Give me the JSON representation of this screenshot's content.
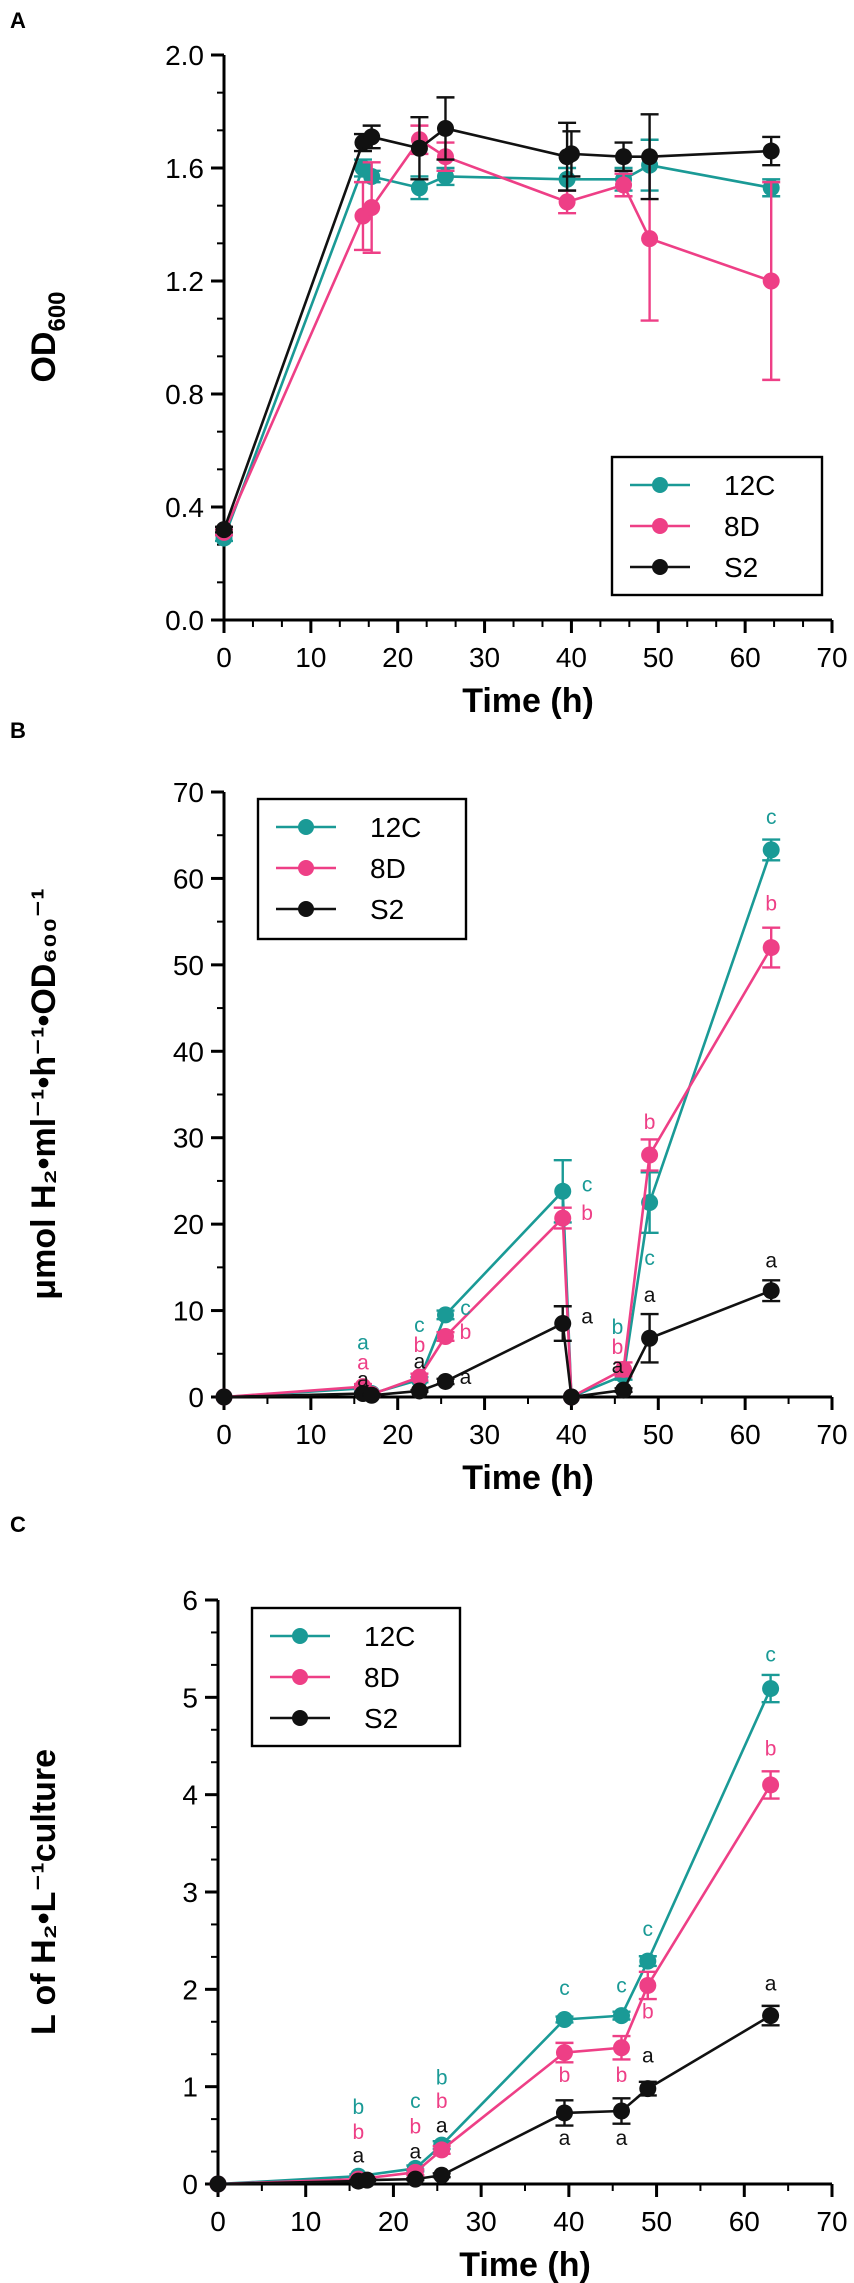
{
  "figure": {
    "panels": [
      {
        "letter": "A"
      },
      {
        "letter": "B"
      },
      {
        "letter": "C"
      }
    ]
  },
  "colors": {
    "12C": "#1a9a96",
    "8D": "#ee3f86",
    "S2": "#111111"
  },
  "chart_data": [
    {
      "panel": "A",
      "type": "line",
      "title": "",
      "xlabel": "Time (h)",
      "ylabel": {
        "main": "OD",
        "sub": "600"
      },
      "xlim": [
        0,
        70
      ],
      "ylim": [
        0,
        2.0
      ],
      "x_ticks": [
        "0",
        "10",
        "20",
        "30",
        "40",
        "50",
        "60",
        "70"
      ],
      "y_ticks": [
        "0.0",
        "0.4",
        "0.8",
        "1.2",
        "1.6",
        "2.0"
      ],
      "legend_position": "bottom-right",
      "series": [
        {
          "name": "12C",
          "color": "#1a9a96",
          "points": [
            {
              "x": 0,
              "y": 0.29,
              "err": 0.01
            },
            {
              "x": 16,
              "y": 1.6,
              "err": 0.03
            },
            {
              "x": 17,
              "y": 1.57,
              "err": 0.02
            },
            {
              "x": 22.5,
              "y": 1.53,
              "err": 0.04
            },
            {
              "x": 25.5,
              "y": 1.57,
              "err": 0.03
            },
            {
              "x": 39.5,
              "y": 1.56,
              "err": 0.04
            },
            {
              "x": 46,
              "y": 1.56,
              "err": 0.04
            },
            {
              "x": 49,
              "y": 1.61,
              "err": 0.09
            },
            {
              "x": 63,
              "y": 1.53,
              "err": 0.03
            }
          ]
        },
        {
          "name": "8D",
          "color": "#ee3f86",
          "points": [
            {
              "x": 0,
              "y": 0.31,
              "err": 0.01
            },
            {
              "x": 16,
              "y": 1.43,
              "err": 0.12
            },
            {
              "x": 17,
              "y": 1.46,
              "err": 0.16
            },
            {
              "x": 22.5,
              "y": 1.7,
              "err": 0.05
            },
            {
              "x": 25.5,
              "y": 1.64,
              "err": 0.05
            },
            {
              "x": 39.5,
              "y": 1.48,
              "err": 0.04
            },
            {
              "x": 46,
              "y": 1.54,
              "err": 0.04
            },
            {
              "x": 49,
              "y": 1.35,
              "err": 0.29
            },
            {
              "x": 63,
              "y": 1.2,
              "err": 0.35
            }
          ]
        },
        {
          "name": "S2",
          "color": "#111111",
          "points": [
            {
              "x": 0,
              "y": 0.32,
              "err": 0.01
            },
            {
              "x": 16,
              "y": 1.69,
              "err": 0.03
            },
            {
              "x": 17,
              "y": 1.71,
              "err": 0.04
            },
            {
              "x": 22.5,
              "y": 1.67,
              "err": 0.11
            },
            {
              "x": 25.5,
              "y": 1.74,
              "err": 0.11
            },
            {
              "x": 39.5,
              "y": 1.64,
              "err": 0.12
            },
            {
              "x": 40,
              "y": 1.65,
              "err": 0.08
            },
            {
              "x": 46,
              "y": 1.64,
              "err": 0.05
            },
            {
              "x": 49,
              "y": 1.64,
              "err": 0.15
            },
            {
              "x": 63,
              "y": 1.66,
              "err": 0.05
            }
          ]
        }
      ]
    },
    {
      "panel": "B",
      "type": "line",
      "title": "",
      "xlabel": "Time (h)",
      "ylabel": {
        "text": "μmol H₂•ml⁻¹•h⁻¹•OD₆₀₀⁻¹"
      },
      "xlim": [
        0,
        70
      ],
      "ylim": [
        0,
        70
      ],
      "x_ticks": [
        "0",
        "10",
        "20",
        "30",
        "40",
        "50",
        "60",
        "70"
      ],
      "y_ticks": [
        "0",
        "10",
        "20",
        "30",
        "40",
        "50",
        "60",
        "70"
      ],
      "legend_position": "top-left",
      "series": [
        {
          "name": "12C",
          "color": "#1a9a96",
          "points": [
            {
              "x": 0,
              "y": 0,
              "err": 0
            },
            {
              "x": 16,
              "y": 1.0,
              "err": 0.3
            },
            {
              "x": 17,
              "y": 0.4,
              "err": 0.2
            },
            {
              "x": 22.5,
              "y": 2.0,
              "err": 0.3
            },
            {
              "x": 25.5,
              "y": 9.5,
              "err": 0.5
            },
            {
              "x": 39,
              "y": 23.8,
              "err": 3.6
            },
            {
              "x": 40,
              "y": 0,
              "err": 0
            },
            {
              "x": 46,
              "y": 2.5,
              "err": 0.5
            },
            {
              "x": 49,
              "y": 22.5,
              "err": 3.5
            },
            {
              "x": 63,
              "y": 63.3,
              "err": 1.2
            }
          ]
        },
        {
          "name": "8D",
          "color": "#ee3f86",
          "points": [
            {
              "x": 0,
              "y": 0,
              "err": 0
            },
            {
              "x": 16,
              "y": 1.2,
              "err": 0.3
            },
            {
              "x": 17,
              "y": 0.3,
              "err": 0.2
            },
            {
              "x": 22.5,
              "y": 2.3,
              "err": 0.4
            },
            {
              "x": 25.5,
              "y": 7.0,
              "err": 0.5
            },
            {
              "x": 39,
              "y": 20.7,
              "err": 1.2
            },
            {
              "x": 40,
              "y": 0,
              "err": 0
            },
            {
              "x": 46,
              "y": 3.2,
              "err": 0.8
            },
            {
              "x": 49,
              "y": 28.0,
              "err": 1.8
            },
            {
              "x": 63,
              "y": 52.0,
              "err": 2.3
            }
          ]
        },
        {
          "name": "S2",
          "color": "#111111",
          "points": [
            {
              "x": 0,
              "y": 0,
              "err": 0
            },
            {
              "x": 16,
              "y": 0.4,
              "err": 0.1
            },
            {
              "x": 17,
              "y": 0.2,
              "err": 0.1
            },
            {
              "x": 22.5,
              "y": 0.7,
              "err": 0.1
            },
            {
              "x": 25.5,
              "y": 1.8,
              "err": 0.3
            },
            {
              "x": 39,
              "y": 8.5,
              "err": 2.0
            },
            {
              "x": 40,
              "y": 0,
              "err": 0
            },
            {
              "x": 46,
              "y": 0.8,
              "err": 0.2
            },
            {
              "x": 49,
              "y": 6.8,
              "err": 2.8
            },
            {
              "x": 63,
              "y": 12.3,
              "err": 1.2
            }
          ]
        }
      ],
      "annotations": [
        {
          "text": "a",
          "series": "12C",
          "x": 16,
          "y": 5.5
        },
        {
          "text": "a",
          "series": "8D",
          "x": 16,
          "y": 3.2
        },
        {
          "text": "a",
          "series": "S2",
          "x": 16,
          "y": 1.2
        },
        {
          "text": "a",
          "series": "S2",
          "x": 22.5,
          "y": 3.3
        },
        {
          "text": "c",
          "series": "12C",
          "x": 22.5,
          "y": 7.5
        },
        {
          "text": "b",
          "series": "8D",
          "x": 22.5,
          "y": 5.2
        },
        {
          "text": "c",
          "series": "12C",
          "x": 27.8,
          "y": 9.5
        },
        {
          "text": "b",
          "series": "8D",
          "x": 27.8,
          "y": 6.7
        },
        {
          "text": "a",
          "series": "S2",
          "x": 27.8,
          "y": 1.5
        },
        {
          "text": "c",
          "series": "12C",
          "x": 41.8,
          "y": 23.8
        },
        {
          "text": "b",
          "series": "8D",
          "x": 41.8,
          "y": 20.5
        },
        {
          "text": "a",
          "series": "S2",
          "x": 41.8,
          "y": 8.5
        },
        {
          "text": "b",
          "series": "12C",
          "x": 45.3,
          "y": 7.3
        },
        {
          "text": "b",
          "series": "8D",
          "x": 45.3,
          "y": 5.0
        },
        {
          "text": "a",
          "series": "S2",
          "x": 45.3,
          "y": 2.8
        },
        {
          "text": "b",
          "series": "8D",
          "x": 49,
          "y": 31.0
        },
        {
          "text": "c",
          "series": "12C",
          "x": 49,
          "y": 15.3
        },
        {
          "text": "a",
          "series": "S2",
          "x": 49,
          "y": 11.0
        },
        {
          "text": "c",
          "series": "12C",
          "x": 63,
          "y": 66.3
        },
        {
          "text": "b",
          "series": "8D",
          "x": 63,
          "y": 56.3
        },
        {
          "text": "a",
          "series": "S2",
          "x": 63,
          "y": 15.0
        }
      ]
    },
    {
      "panel": "C",
      "type": "line",
      "title": "",
      "xlabel": "Time (h)",
      "ylabel": {
        "text": "L of H₂•L⁻¹culture"
      },
      "xlim": [
        0,
        70
      ],
      "ylim": [
        0,
        6
      ],
      "x_ticks": [
        "0",
        "10",
        "20",
        "30",
        "40",
        "50",
        "60",
        "70"
      ],
      "y_ticks": [
        "0",
        "1",
        "2",
        "3",
        "4",
        "5",
        "6"
      ],
      "legend_position": "top-left",
      "series": [
        {
          "name": "12C",
          "color": "#1a9a96",
          "points": [
            {
              "x": 0,
              "y": 0,
              "err": 0
            },
            {
              "x": 16,
              "y": 0.08,
              "err": 0.02
            },
            {
              "x": 22.5,
              "y": 0.16,
              "err": 0.03
            },
            {
              "x": 25.5,
              "y": 0.4,
              "err": 0.04
            },
            {
              "x": 39.5,
              "y": 1.69,
              "err": 0.03
            },
            {
              "x": 46,
              "y": 1.73,
              "err": 0.04
            },
            {
              "x": 49,
              "y": 2.29,
              "err": 0.05
            },
            {
              "x": 63,
              "y": 5.09,
              "err": 0.14
            }
          ]
        },
        {
          "name": "8D",
          "color": "#ee3f86",
          "points": [
            {
              "x": 0,
              "y": 0,
              "err": 0
            },
            {
              "x": 16,
              "y": 0.05,
              "err": 0.02
            },
            {
              "x": 22.5,
              "y": 0.12,
              "err": 0.03
            },
            {
              "x": 25.5,
              "y": 0.35,
              "err": 0.04
            },
            {
              "x": 39.5,
              "y": 1.35,
              "err": 0.1
            },
            {
              "x": 46,
              "y": 1.4,
              "err": 0.12
            },
            {
              "x": 49,
              "y": 2.04,
              "err": 0.14
            },
            {
              "x": 63,
              "y": 4.1,
              "err": 0.14
            }
          ]
        },
        {
          "name": "S2",
          "color": "#111111",
          "points": [
            {
              "x": 0,
              "y": 0,
              "err": 0
            },
            {
              "x": 16,
              "y": 0.03,
              "err": 0.01
            },
            {
              "x": 17,
              "y": 0.04,
              "err": 0.01
            },
            {
              "x": 22.5,
              "y": 0.05,
              "err": 0.01
            },
            {
              "x": 25.5,
              "y": 0.09,
              "err": 0.02
            },
            {
              "x": 39.5,
              "y": 0.73,
              "err": 0.13
            },
            {
              "x": 46,
              "y": 0.75,
              "err": 0.13
            },
            {
              "x": 49,
              "y": 0.98,
              "err": 0.07
            },
            {
              "x": 63,
              "y": 1.73,
              "err": 0.1
            }
          ]
        }
      ],
      "annotations": [
        {
          "text": "b",
          "series": "12C",
          "x": 16,
          "y": 0.72
        },
        {
          "text": "b",
          "series": "8D",
          "x": 16,
          "y": 0.46
        },
        {
          "text": "a",
          "series": "S2",
          "x": 16,
          "y": 0.22
        },
        {
          "text": "c",
          "series": "12C",
          "x": 22.5,
          "y": 0.78
        },
        {
          "text": "b",
          "series": "8D",
          "x": 22.5,
          "y": 0.52
        },
        {
          "text": "a",
          "series": "S2",
          "x": 22.5,
          "y": 0.26
        },
        {
          "text": "b",
          "series": "12C",
          "x": 25.5,
          "y": 1.02
        },
        {
          "text": "b",
          "series": "8D",
          "x": 25.5,
          "y": 0.78
        },
        {
          "text": "a",
          "series": "S2",
          "x": 25.5,
          "y": 0.53
        },
        {
          "text": "c",
          "series": "12C",
          "x": 39.5,
          "y": 1.94
        },
        {
          "text": "b",
          "series": "8D",
          "x": 39.5,
          "y": 1.05
        },
        {
          "text": "a",
          "series": "S2",
          "x": 39.5,
          "y": 0.4
        },
        {
          "text": "c",
          "series": "12C",
          "x": 46,
          "y": 1.97
        },
        {
          "text": "b",
          "series": "8D",
          "x": 46,
          "y": 1.05
        },
        {
          "text": "a",
          "series": "S2",
          "x": 46,
          "y": 0.4
        },
        {
          "text": "c",
          "series": "12C",
          "x": 49,
          "y": 2.55
        },
        {
          "text": "b",
          "series": "8D",
          "x": 49,
          "y": 1.7
        },
        {
          "text": "a",
          "series": "S2",
          "x": 49,
          "y": 1.25
        },
        {
          "text": "c",
          "series": "12C",
          "x": 63,
          "y": 5.37
        },
        {
          "text": "b",
          "series": "8D",
          "x": 63,
          "y": 4.4
        },
        {
          "text": "a",
          "series": "S2",
          "x": 63,
          "y": 1.99
        }
      ]
    }
  ]
}
